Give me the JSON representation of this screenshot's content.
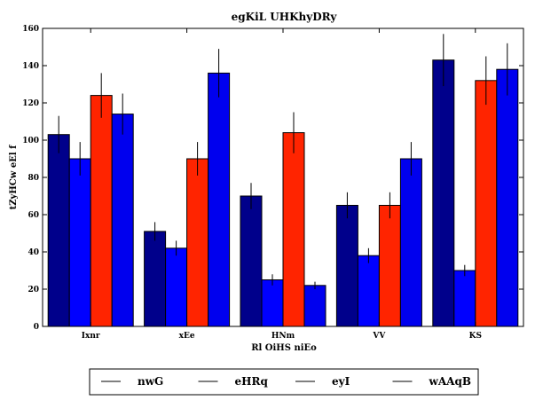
{
  "chart_data": {
    "type": "bar",
    "title": "egKiL UHKhyDRy",
    "xlabel": "Rl OiHS niEo",
    "ylabel": "tZyHCw eEl   f",
    "categories": [
      "Ixnr",
      "xEe",
      "HNm",
      "VV",
      "KS"
    ],
    "ylim": [
      0,
      160
    ],
    "yticks": [
      "0",
      "20",
      "40",
      "60",
      "80",
      "100",
      "120",
      "140",
      "160"
    ],
    "grid": false,
    "legend_position": "bottom",
    "series": [
      {
        "name": "nwG",
        "color": "#00008b",
        "values": [
          103,
          51,
          70,
          65,
          143
        ],
        "errors": [
          10,
          5,
          7,
          7,
          14
        ]
      },
      {
        "name": "eHRq",
        "color": "#0000ff",
        "values": [
          90,
          42,
          25,
          38,
          30
        ],
        "errors": [
          9,
          4,
          3,
          4,
          3
        ]
      },
      {
        "name": "eyI",
        "color": "#ff2400",
        "values": [
          124,
          90,
          104,
          65,
          132
        ],
        "errors": [
          12,
          9,
          11,
          7,
          13
        ]
      },
      {
        "name": "wAAqB",
        "color": "#0000ee",
        "values": [
          114,
          136,
          22,
          90,
          138
        ],
        "errors": [
          11,
          13,
          2,
          9,
          14
        ]
      }
    ]
  }
}
